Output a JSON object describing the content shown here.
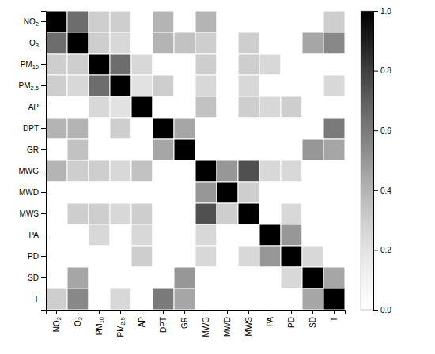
{
  "chart_data": {
    "type": "heatmap",
    "x_labels": [
      "NO2",
      "O3",
      "PM10",
      "PM2.5",
      "AP",
      "DPT",
      "GR",
      "MWG",
      "MWD",
      "MWS",
      "PA",
      "PD",
      "SD",
      "T"
    ],
    "y_labels": [
      "NO2",
      "O3",
      "PM10",
      "PM2.5",
      "AP",
      "DPT",
      "GR",
      "MWG",
      "MWD",
      "MWS",
      "PA",
      "PD",
      "SD",
      "T"
    ],
    "values": [
      [
        1.0,
        0.65,
        0.3,
        0.3,
        0.0,
        0.4,
        0.0,
        0.4,
        0.0,
        0.0,
        0.0,
        0.0,
        0.0,
        0.3
      ],
      [
        0.65,
        1.0,
        0.3,
        0.25,
        0.0,
        0.4,
        0.35,
        0.3,
        0.0,
        0.3,
        0.0,
        0.0,
        0.45,
        0.55
      ],
      [
        0.3,
        0.3,
        1.0,
        0.65,
        0.25,
        0.0,
        0.0,
        0.3,
        0.0,
        0.3,
        0.25,
        0.0,
        0.0,
        0.0
      ],
      [
        0.3,
        0.25,
        0.65,
        1.0,
        0.2,
        0.3,
        0.0,
        0.25,
        0.0,
        0.25,
        0.0,
        0.0,
        0.0,
        0.25
      ],
      [
        0.0,
        0.0,
        0.25,
        0.2,
        1.0,
        0.0,
        0.0,
        0.35,
        0.0,
        0.3,
        0.25,
        0.3,
        0.0,
        0.0
      ],
      [
        0.4,
        0.4,
        0.0,
        0.3,
        0.0,
        1.0,
        0.45,
        0.0,
        0.0,
        0.0,
        0.0,
        0.0,
        0.0,
        0.6
      ],
      [
        0.0,
        0.35,
        0.0,
        0.0,
        0.0,
        0.45,
        1.0,
        0.0,
        0.0,
        0.0,
        0.0,
        0.0,
        0.5,
        0.45
      ],
      [
        0.4,
        0.3,
        0.3,
        0.25,
        0.35,
        0.0,
        0.0,
        1.0,
        0.5,
        0.75,
        0.25,
        0.25,
        0.0,
        0.0
      ],
      [
        0.0,
        0.0,
        0.0,
        0.0,
        0.0,
        0.0,
        0.0,
        0.5,
        1.0,
        0.3,
        0.0,
        0.0,
        0.0,
        0.0
      ],
      [
        0.0,
        0.3,
        0.3,
        0.25,
        0.3,
        0.0,
        0.0,
        0.75,
        0.3,
        1.0,
        0.0,
        0.25,
        0.0,
        0.0
      ],
      [
        0.0,
        0.0,
        0.25,
        0.0,
        0.25,
        0.0,
        0.0,
        0.25,
        0.0,
        0.0,
        1.0,
        0.5,
        0.0,
        0.0
      ],
      [
        0.0,
        0.0,
        0.0,
        0.0,
        0.3,
        0.0,
        0.0,
        0.25,
        0.0,
        0.25,
        0.5,
        1.0,
        0.25,
        0.0
      ],
      [
        0.0,
        0.45,
        0.0,
        0.0,
        0.0,
        0.0,
        0.5,
        0.0,
        0.0,
        0.0,
        0.0,
        0.25,
        1.0,
        0.45
      ],
      [
        0.3,
        0.55,
        0.0,
        0.25,
        0.0,
        0.6,
        0.45,
        0.0,
        0.0,
        0.0,
        0.0,
        0.0,
        0.45,
        1.0
      ]
    ],
    "colorbar_lim": [
      0.0,
      1.0
    ],
    "colorbar_ticks": [
      {
        "value": 0.0,
        "label": "0.0"
      },
      0.2,
      0.4,
      0.6,
      0.8,
      {
        "value": 1.0,
        "label": "1.0"
      }
    ]
  }
}
